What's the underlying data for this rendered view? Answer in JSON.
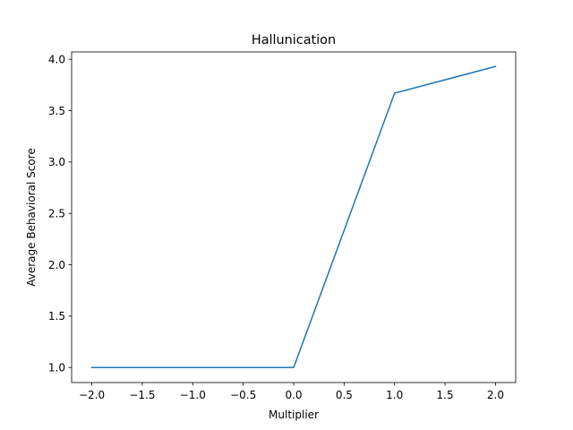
{
  "chart_data": {
    "type": "line",
    "title": "Hallunication",
    "xlabel": "Multiplier",
    "ylabel": "Average Behavioral Score",
    "xlim": [
      -2.2,
      2.2
    ],
    "ylim": [
      0.854,
      4.071
    ],
    "xticks": [
      -2.0,
      -1.5,
      -1.0,
      -0.5,
      0.0,
      0.5,
      1.0,
      1.5,
      2.0
    ],
    "xtick_labels": [
      "−2.0",
      "−1.5",
      "−1.0",
      "−0.5",
      "0.0",
      "0.5",
      "1.0",
      "1.5",
      "2.0"
    ],
    "yticks": [
      1.0,
      1.5,
      2.0,
      2.5,
      3.0,
      3.5,
      4.0
    ],
    "ytick_labels": [
      "1.0",
      "1.5",
      "2.0",
      "2.5",
      "3.0",
      "3.5",
      "4.0"
    ],
    "grid": false,
    "series": [
      {
        "color": "#1f77b4",
        "x": [
          -2,
          -1,
          0,
          1,
          2
        ],
        "y": [
          1.0,
          1.0,
          1.0,
          3.67,
          3.93
        ]
      }
    ]
  }
}
